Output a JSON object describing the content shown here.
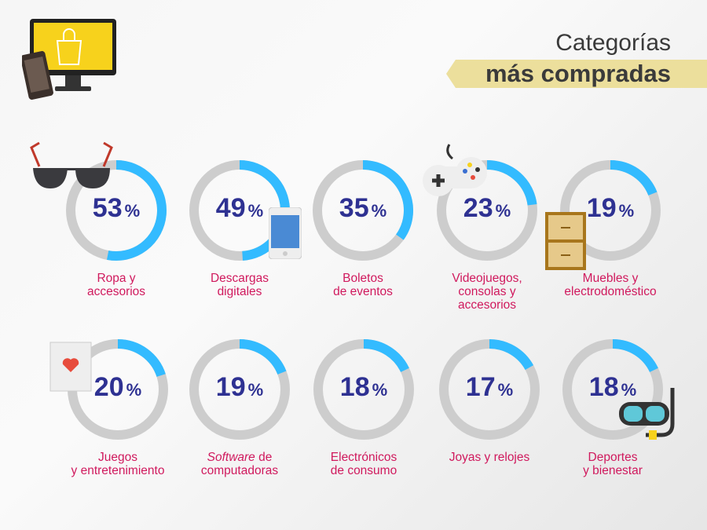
{
  "header": {
    "title_line1": "Categorías",
    "title_line2": "más compradas"
  },
  "colors": {
    "arc": "#33bbff",
    "ring": "#cdcdcd",
    "number": "#2e3192",
    "label": "#d0195d"
  },
  "chart_data": {
    "type": "donut",
    "title": "Categorías más compradas",
    "unit": "%",
    "categories": [
      {
        "label_lines": [
          "Ropa y",
          "accesorios"
        ],
        "value": 53,
        "icon": "sunglasses-icon"
      },
      {
        "label_lines": [
          "Descargas",
          "digitales"
        ],
        "value": 49,
        "icon": "smartphone-icon"
      },
      {
        "label_lines": [
          "Boletos",
          "de eventos"
        ],
        "value": 35,
        "icon": ""
      },
      {
        "label_lines": [
          "Videojuegos,",
          "consolas y",
          "accesorios"
        ],
        "value": 23,
        "icon": "gamepad-icon"
      },
      {
        "label_lines": [
          "Muebles y",
          "electrodoméstico"
        ],
        "value": 19,
        "icon": "drawer-icon"
      },
      {
        "label_lines": [
          "Juegos",
          "y entretenimiento"
        ],
        "value": 20,
        "icon": "playing-card-icon"
      },
      {
        "label_lines": [
          "Software de",
          "computadoras"
        ],
        "value": 19,
        "icon": ""
      },
      {
        "label_lines": [
          "Electrónicos",
          "de consumo"
        ],
        "value": 18,
        "icon": ""
      },
      {
        "label_lines": [
          "Joyas y relojes"
        ],
        "value": 17,
        "icon": ""
      },
      {
        "label_lines": [
          "Deportes",
          "y bienestar"
        ],
        "value": 18,
        "icon": "snorkel-mask-icon"
      }
    ],
    "percent_symbol": "%"
  }
}
